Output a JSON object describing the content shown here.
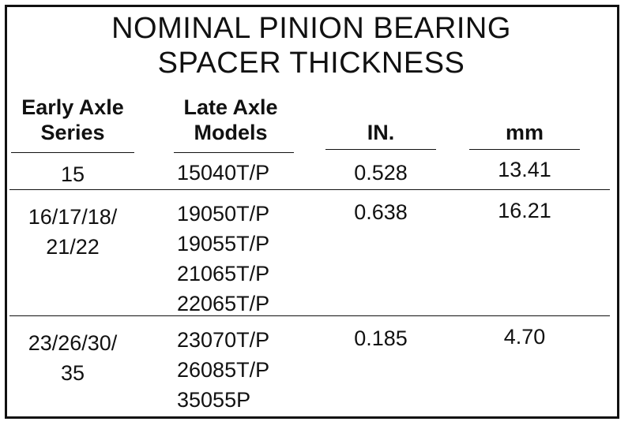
{
  "title_line1": "NOMINAL PINION BEARING",
  "title_line2": "SPACER THICKNESS",
  "headers": {
    "early_line1": "Early Axle",
    "early_line2": "Series",
    "late_line1": "Late Axle",
    "late_line2": "Models",
    "in": "IN.",
    "mm": "mm"
  },
  "rows": [
    {
      "early": [
        "15"
      ],
      "late": [
        "15040T/P"
      ],
      "in": "0.528",
      "mm": "13.41"
    },
    {
      "early": [
        "16/17/18/",
        "21/22"
      ],
      "late": [
        "19050T/P",
        "19055T/P",
        "21065T/P",
        "22065T/P"
      ],
      "in": "0.638",
      "mm": "16.21"
    },
    {
      "early": [
        "23/26/30/",
        "35"
      ],
      "late": [
        "23070T/P",
        "26085T/P",
        "35055P"
      ],
      "in": "0.185",
      "mm": "4.70"
    }
  ]
}
